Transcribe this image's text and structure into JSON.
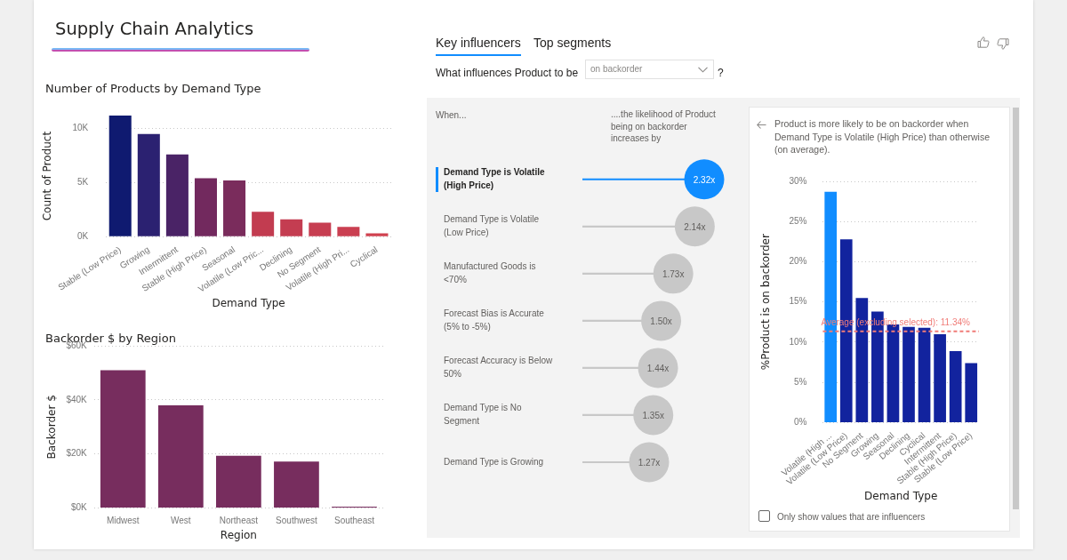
{
  "chart_data": [
    {
      "type": "other",
      "title": "Supply Chain Analytics"
    },
    {
      "type": "bar",
      "title": "Number of Products by Demand Type",
      "xlabel": "Demand Type",
      "ylabel": "Count of Product",
      "categories": [
        "Stable (Low Price)",
        "Growing",
        "Intermittent",
        "Stable (High Price)",
        "Seasonal",
        "Volatile (Low Pric...",
        "Declining",
        "No Segment",
        "Volatile (High Pri...",
        "Cyclical"
      ],
      "values": [
        11200,
        9500,
        7600,
        5400,
        5200,
        2300,
        1600,
        1300,
        900,
        300
      ],
      "colors": [
        "#0f1a70",
        "#2b2171",
        "#4a2366",
        "#72295e",
        "#7a2c5c",
        "#c23c50",
        "#c43d51",
        "#c73e51",
        "#ca3f51",
        "#d0414f"
      ],
      "ylim": [
        0,
        11200
      ],
      "yticks": [
        {
          "value": 0,
          "label": "0K"
        },
        {
          "value": 5000,
          "label": "5K"
        },
        {
          "value": 10000,
          "label": "10K"
        }
      ],
      "grid": "y"
    },
    {
      "type": "bar",
      "title": "Backorder $ by Region",
      "xlabel": "Region",
      "ylabel": "Backorder $",
      "categories": [
        "Midwest",
        "West",
        "Northeast",
        "Southwest",
        "Southeast"
      ],
      "values": [
        51000,
        38000,
        19300,
        17200,
        500
      ],
      "color": "#772d5e",
      "ylim": [
        0,
        60000
      ],
      "yticks": [
        {
          "value": 0,
          "label": "$0K"
        },
        {
          "value": 20000,
          "label": "$20K"
        },
        {
          "value": 40000,
          "label": "$40K"
        },
        {
          "value": 60000,
          "label": "$60K"
        }
      ],
      "grid": "y"
    },
    {
      "type": "lollipop",
      "orientation": "horizontal",
      "categories": [
        "Demand Type is Volatile (High Price)",
        "Demand Type is Volatile (Low Price)",
        "Manufactured Goods is <70%",
        "Forecast Bias is Accurate (5% to -5%)",
        "Forecast Accuracy is Below 50%",
        "Demand Type is No Segment",
        "Demand Type is Growing"
      ],
      "values": [
        2.32,
        2.14,
        1.73,
        1.5,
        1.44,
        1.35,
        1.27
      ],
      "value_labels": [
        "2.32x",
        "2.14x",
        "1.73x",
        "1.50x",
        "1.44x",
        "1.35x",
        "1.27x"
      ],
      "colors": [
        "#118dff",
        "#c8c8c8",
        "#c8c8c8",
        "#c8c8c8",
        "#c8c8c8",
        "#c8c8c8",
        "#c8c8c8"
      ],
      "tick_labels": "y",
      "marker": "circle",
      "annotations": [
        "Key influencers",
        "Top segments",
        "What influences Product to be",
        "on backorder",
        "?",
        "When...",
        "....the likelihood of Product being on backorder increases by"
      ]
    },
    {
      "type": "bar",
      "title": "Product is more likely to be on backorder when Demand Type is Volatile (High Price) than otherwise (on average).",
      "xlabel": "Demand Type",
      "ylabel": "%Product is on backorder",
      "categories": [
        "Volatile (High ...",
        "Volatile (Low Price)",
        "No Segment",
        "Growing",
        "Seasonal",
        "Declining",
        "Cyclical",
        "Intermittent",
        "Stable (High Price)",
        "Stable (Low Price)"
      ],
      "values": [
        28.7,
        22.8,
        15.5,
        13.8,
        12.2,
        11.9,
        11.8,
        11.0,
        8.9,
        7.4
      ],
      "colors": [
        "#118dff",
        "#12239e",
        "#12239e",
        "#12239e",
        "#12239e",
        "#12239e",
        "#12239e",
        "#12239e",
        "#12239e",
        "#12239e"
      ],
      "ylim": [
        0,
        30
      ],
      "yticks": [
        {
          "value": 0,
          "label": "0%"
        },
        {
          "value": 5,
          "label": "5%"
        },
        {
          "value": 10,
          "label": "10%"
        },
        {
          "value": 15,
          "label": "15%"
        },
        {
          "value": 20,
          "label": "20%"
        },
        {
          "value": 25,
          "label": "25%"
        },
        {
          "value": 30,
          "label": "30%"
        }
      ],
      "grid": "y",
      "ref_lines": [
        {
          "axis": "y",
          "value": 11.34,
          "label": "Average (excluding selected): 11.34%",
          "color": "#f07c78",
          "line_style": "dashed"
        }
      ],
      "annotations": [
        "Only show values that are influencers"
      ]
    }
  ]
}
